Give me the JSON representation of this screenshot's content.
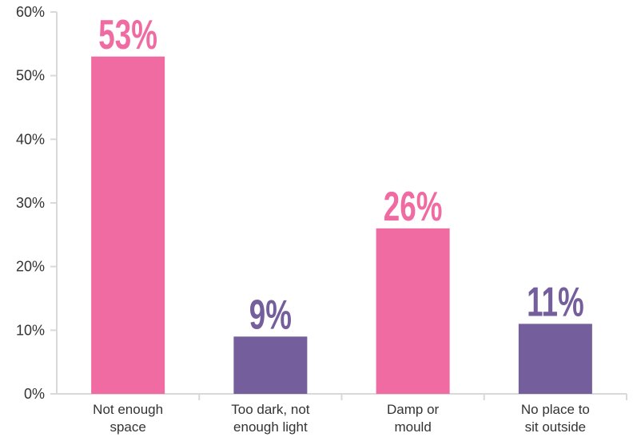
{
  "chart_data": {
    "type": "bar",
    "title": "",
    "xlabel": "",
    "ylabel": "",
    "categories": [
      [
        "Not enough",
        "space"
      ],
      [
        "Too dark, not",
        "enough light"
      ],
      [
        "Damp or",
        "mould"
      ],
      [
        "No place to",
        "sit outside"
      ]
    ],
    "values": [
      53,
      9,
      26,
      11
    ],
    "data_labels": [
      "53%",
      "9%",
      "26%",
      "11%"
    ],
    "bar_colors": [
      "#f06ba1",
      "#755e9c",
      "#f06ba1",
      "#755e9c"
    ],
    "ylim": [
      0,
      60
    ],
    "yticks": [
      0,
      10,
      20,
      30,
      40,
      50,
      60
    ],
    "ytick_labels": [
      "0%",
      "10%",
      "20%",
      "30%",
      "40%",
      "50%",
      "60%"
    ],
    "grid": false,
    "legend": "none"
  }
}
